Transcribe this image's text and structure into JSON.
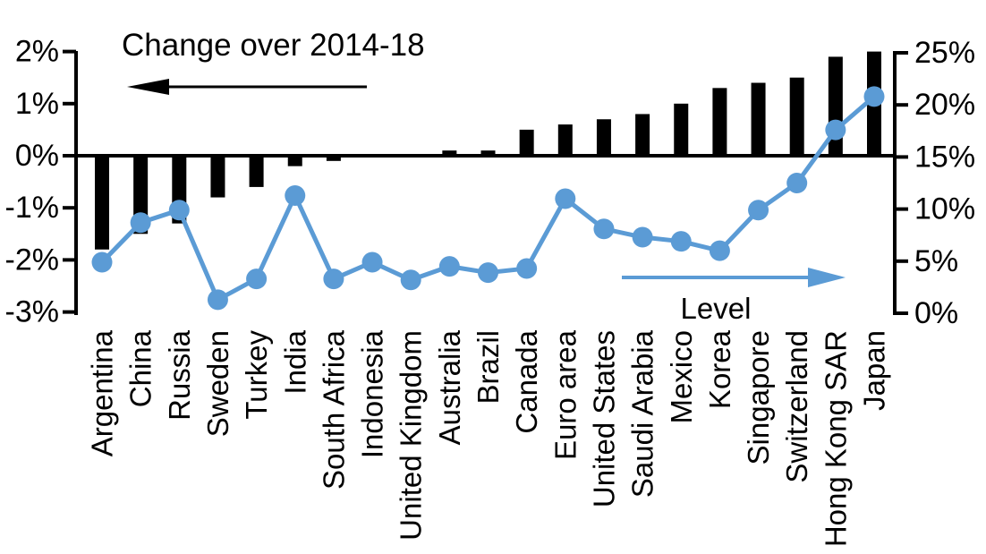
{
  "chart_data": {
    "type": "bar",
    "title": "",
    "categories": [
      "Argentina",
      "China",
      "Russia",
      "Sweden",
      "Turkey",
      "India",
      "South Africa",
      "Indonesia",
      "United Kingdom",
      "Australia",
      "Brazil",
      "Canada",
      "Euro area",
      "United States",
      "Saudi Arabia",
      "Mexico",
      "Korea",
      "Singapore",
      "Switzerland",
      "Hong Kong SAR",
      "Japan"
    ],
    "series": [
      {
        "name": "Change over 2014-18",
        "type": "bar",
        "axis": "left",
        "color": "#000000",
        "values": [
          -1.8,
          -1.5,
          -1.3,
          -0.8,
          -0.6,
          -0.2,
          -0.1,
          0,
          0,
          0.1,
          0.1,
          0.5,
          0.6,
          0.7,
          0.8,
          1.0,
          1.3,
          1.4,
          1.5,
          1.9,
          2.0
        ]
      },
      {
        "name": "Level",
        "type": "line",
        "axis": "right",
        "color": "#5b9bd5",
        "values": [
          4.9,
          8.7,
          9.9,
          1.3,
          3.3,
          11.3,
          3.3,
          4.9,
          3.2,
          4.5,
          3.9,
          4.3,
          11.0,
          8.1,
          7.3,
          6.9,
          6.0,
          9.9,
          12.5,
          17.6,
          20.8
        ]
      }
    ],
    "left_axis": {
      "unit": "%",
      "min": -3,
      "max": 2,
      "tick_values": [
        2,
        1,
        0,
        -1,
        -2,
        -3
      ],
      "tick_labels": [
        "2%",
        "1%",
        "0%",
        "-1%",
        "-2%",
        "-3%"
      ]
    },
    "right_axis": {
      "unit": "%",
      "min": 0,
      "max": 25,
      "tick_values": [
        25,
        20,
        15,
        10,
        5,
        0
      ],
      "tick_labels": [
        "25%",
        "20%",
        "15%",
        "10%",
        "5%",
        "0%"
      ]
    },
    "annotations": {
      "bar_series_label": "Change over 2014-18",
      "bar_series_arrow": "left",
      "line_series_label": "Level",
      "line_series_arrow": "right"
    },
    "grid": false,
    "legend_position": "in-plot annotations"
  },
  "colors": {
    "bar": "#000000",
    "line": "#5b9bd5",
    "axis": "#000000",
    "text": "#000000",
    "background": "#ffffff"
  }
}
